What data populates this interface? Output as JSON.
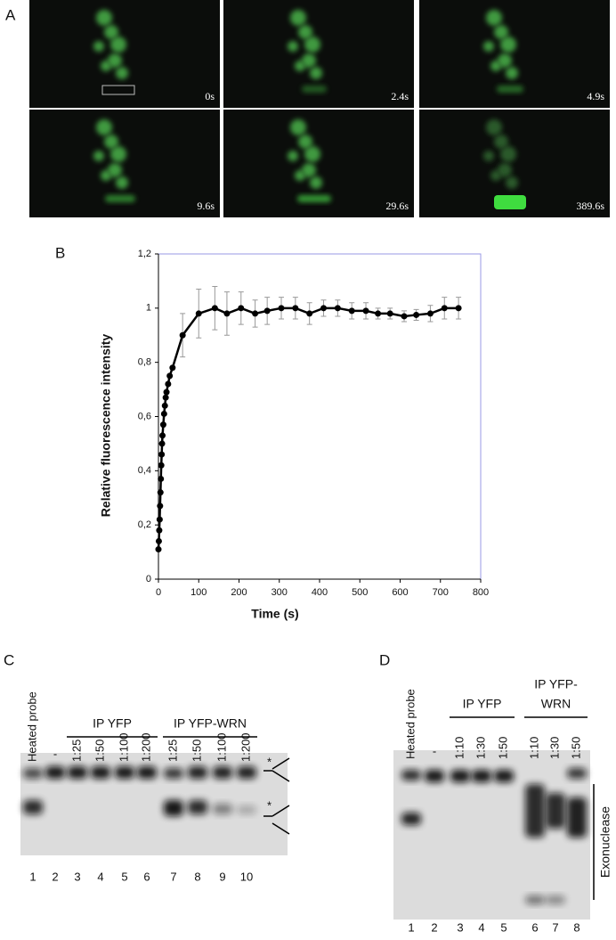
{
  "panel_a": {
    "label": "A",
    "timestamps": [
      "0s",
      "2.4s",
      "4.9s",
      "9.6s",
      "29.6s",
      "389.6s"
    ]
  },
  "chart_data": {
    "type": "line",
    "label": "B",
    "x_label": "Time (s)",
    "y_label": "Relative fluorescence intensity",
    "xlim": [
      0,
      800
    ],
    "xticks": [
      0,
      100,
      200,
      300,
      400,
      500,
      600,
      700,
      800
    ],
    "ylim": [
      0,
      1.2
    ],
    "yticks": [
      0,
      {
        "value": 0.2,
        "label": "0,2"
      },
      {
        "value": 0.4,
        "label": "0,4"
      },
      {
        "value": 0.6,
        "label": "0,6"
      },
      {
        "value": 0.8,
        "label": "0,8"
      },
      1,
      {
        "value": 1.2,
        "label": "1,2"
      }
    ],
    "series": [
      {
        "color": "#000000",
        "x": [
          0,
          1,
          2,
          3,
          4,
          5,
          6,
          7,
          8,
          9,
          10,
          12,
          14,
          16,
          18,
          20,
          24,
          28,
          35,
          60,
          100,
          140,
          170,
          205,
          240,
          270,
          305,
          340,
          375,
          410,
          445,
          480,
          515,
          545,
          575,
          610,
          640,
          675,
          710,
          745
        ],
        "values": [
          0.11,
          0.14,
          0.18,
          0.22,
          0.27,
          0.32,
          0.37,
          0.42,
          0.46,
          0.5,
          0.53,
          0.57,
          0.61,
          0.64,
          0.67,
          0.69,
          0.72,
          0.75,
          0.78,
          0.9,
          0.98,
          1,
          0.98,
          1,
          0.98,
          0.99,
          1,
          1,
          0.98,
          1,
          1,
          0.99,
          0.99,
          0.98,
          0.98,
          0.97,
          0.975,
          0.98,
          1,
          1
        ],
        "errors": [
          null,
          null,
          null,
          null,
          null,
          null,
          null,
          null,
          null,
          null,
          null,
          null,
          null,
          null,
          null,
          null,
          null,
          null,
          null,
          0.08,
          0.09,
          0.08,
          0.08,
          0.06,
          0.05,
          0.05,
          0.04,
          0.04,
          0.04,
          0.03,
          0.03,
          0.03,
          0.03,
          0.02,
          0.02,
          0.02,
          0.02,
          0.03,
          0.04,
          0.04
        ]
      }
    ]
  },
  "panel_c": {
    "label": "C",
    "heated_probe": "Heated probe",
    "dash": "-",
    "groups": [
      {
        "name": "IP YFP",
        "lanes": [
          "1:25",
          "1:50",
          "1:100",
          "1:200"
        ]
      },
      {
        "name": "IP YFP-WRN",
        "lanes": [
          "1:25",
          "1:50",
          "1:100",
          "1:200"
        ]
      }
    ],
    "lane_numbers": [
      1,
      2,
      3,
      4,
      5,
      6,
      7,
      8,
      9,
      10
    ],
    "markers": [
      "*",
      "*"
    ]
  },
  "panel_d": {
    "label": "D",
    "heated_probe": "Heated probe",
    "dash": "-",
    "groups": [
      {
        "name_lines": [
          "IP YFP"
        ],
        "lanes": [
          "1:10",
          "1:30",
          "1:50"
        ]
      },
      {
        "name_lines": [
          "IP YFP-",
          "WRN"
        ],
        "lanes": [
          "1:10",
          "1:30",
          "1:50"
        ]
      }
    ],
    "lane_numbers": [
      1,
      2,
      3,
      4,
      5,
      6,
      7,
      8
    ],
    "annotation": "Exonuclease"
  }
}
